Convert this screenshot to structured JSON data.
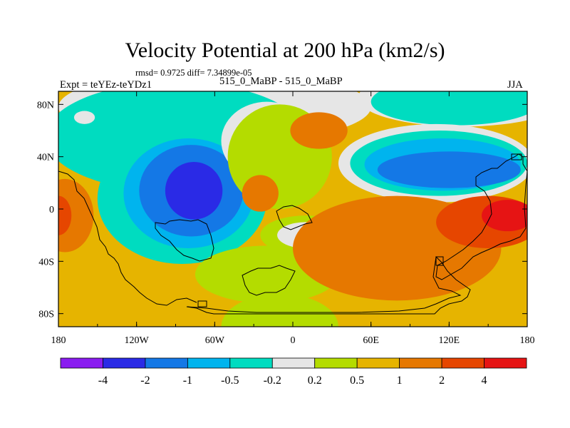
{
  "chart_data": {
    "type": "heatmap",
    "title": "Velocity Potential at 200 hPa (km2/s)",
    "stats": "rmsd= 0.9725 diff= 7.34899e-05",
    "left_label": "Expt = teYEz-teYDz1",
    "center_label": "515_0_MaBP - 515_0_MaBP",
    "right_label": "JJA",
    "x_axis": {
      "range": [
        -180,
        180
      ],
      "ticks": [
        {
          "value": -180,
          "label": "180"
        },
        {
          "value": -120,
          "label": "120W"
        },
        {
          "value": -60,
          "label": "60W"
        },
        {
          "value": 0,
          "label": "0"
        },
        {
          "value": 60,
          "label": "60E"
        },
        {
          "value": 120,
          "label": "120E"
        },
        {
          "value": 180,
          "label": "180"
        }
      ]
    },
    "y_axis": {
      "range": [
        -90,
        90
      ],
      "ticks": [
        {
          "value": 80,
          "label": "80N"
        },
        {
          "value": 40,
          "label": "40N"
        },
        {
          "value": 0,
          "label": "0"
        },
        {
          "value": -40,
          "label": "40S"
        },
        {
          "value": -80,
          "label": "80S"
        }
      ]
    },
    "levels": [
      "-4",
      "-2",
      "-1",
      "-0.5",
      "-0.2",
      "0.2",
      "0.5",
      "1",
      "2",
      "4"
    ],
    "colors": [
      "#8a1cf0",
      "#2a2ae6",
      "#1478e6",
      "#00b4ee",
      "#00dcc0",
      "#e6e6e6",
      "#b4dc00",
      "#e6b400",
      "#e67800",
      "#e64600",
      "#e61414"
    ],
    "fields": {
      "background": 7,
      "blobs": [
        {
          "lon": -60,
          "lat": 78,
          "rlon": 120,
          "rlat": 28,
          "cls": 5
        },
        {
          "lon": 130,
          "lat": 85,
          "rlon": 80,
          "rlat": 22,
          "cls": 5
        },
        {
          "lon": -90,
          "lat": 55,
          "rlon": 100,
          "rlat": 42,
          "cls": 4
        },
        {
          "lon": 125,
          "lat": 82,
          "rlon": 65,
          "rlat": 18,
          "cls": 4
        },
        {
          "lon": -85,
          "lat": 8,
          "rlon": 65,
          "rlat": 50,
          "cls": 4
        },
        {
          "lon": -80,
          "lat": 12,
          "rlon": 50,
          "rlat": 42,
          "cls": 3
        },
        {
          "lon": -78,
          "lat": 14,
          "rlon": 40,
          "rlat": 35,
          "cls": 2
        },
        {
          "lon": -76,
          "lat": 14,
          "rlon": 22,
          "rlat": 22,
          "cls": 1
        },
        {
          "lon": -20,
          "lat": 52,
          "rlon": 35,
          "rlat": 30,
          "cls": 5
        },
        {
          "lon": 110,
          "lat": 35,
          "rlon": 75,
          "rlat": 30,
          "cls": 5
        },
        {
          "lon": 112,
          "lat": 35,
          "rlon": 68,
          "rlat": 25,
          "cls": 4
        },
        {
          "lon": 115,
          "lat": 34,
          "rlon": 60,
          "rlat": 20,
          "cls": 3
        },
        {
          "lon": 120,
          "lat": 30,
          "rlon": 55,
          "rlat": 14,
          "cls": 2
        },
        {
          "lon": -10,
          "lat": 40,
          "rlon": 40,
          "rlat": 40,
          "cls": 6
        },
        {
          "lon": -20,
          "lat": -50,
          "rlon": 55,
          "rlat": 22,
          "cls": 6
        },
        {
          "lon": 10,
          "lat": -20,
          "rlon": 35,
          "rlat": 15,
          "cls": 6
        },
        {
          "lon": 10,
          "lat": -20,
          "rlon": 22,
          "rlat": 10,
          "cls": 5
        },
        {
          "lon": -10,
          "lat": -90,
          "rlon": 45,
          "rlat": 25,
          "cls": 6
        },
        {
          "lon": 80,
          "lat": -30,
          "rlon": 80,
          "rlat": 40,
          "cls": 8
        },
        {
          "lon": 150,
          "lat": -10,
          "rlon": 40,
          "rlat": 20,
          "cls": 9
        },
        {
          "lon": 165,
          "lat": -5,
          "rlon": 20,
          "rlat": 12,
          "cls": 10
        },
        {
          "lon": -175,
          "lat": -5,
          "rlon": 22,
          "rlat": 28,
          "cls": 8
        },
        {
          "lon": -180,
          "lat": -5,
          "rlon": 10,
          "rlat": 15,
          "cls": 9
        },
        {
          "lon": -25,
          "lat": 12,
          "rlon": 14,
          "rlat": 14,
          "cls": 8
        },
        {
          "lon": 20,
          "lat": 60,
          "rlon": 22,
          "rlat": 14,
          "cls": 8
        },
        {
          "lon": -160,
          "lat": 70,
          "rlon": 8,
          "rlat": 5,
          "cls": 5
        }
      ]
    }
  }
}
